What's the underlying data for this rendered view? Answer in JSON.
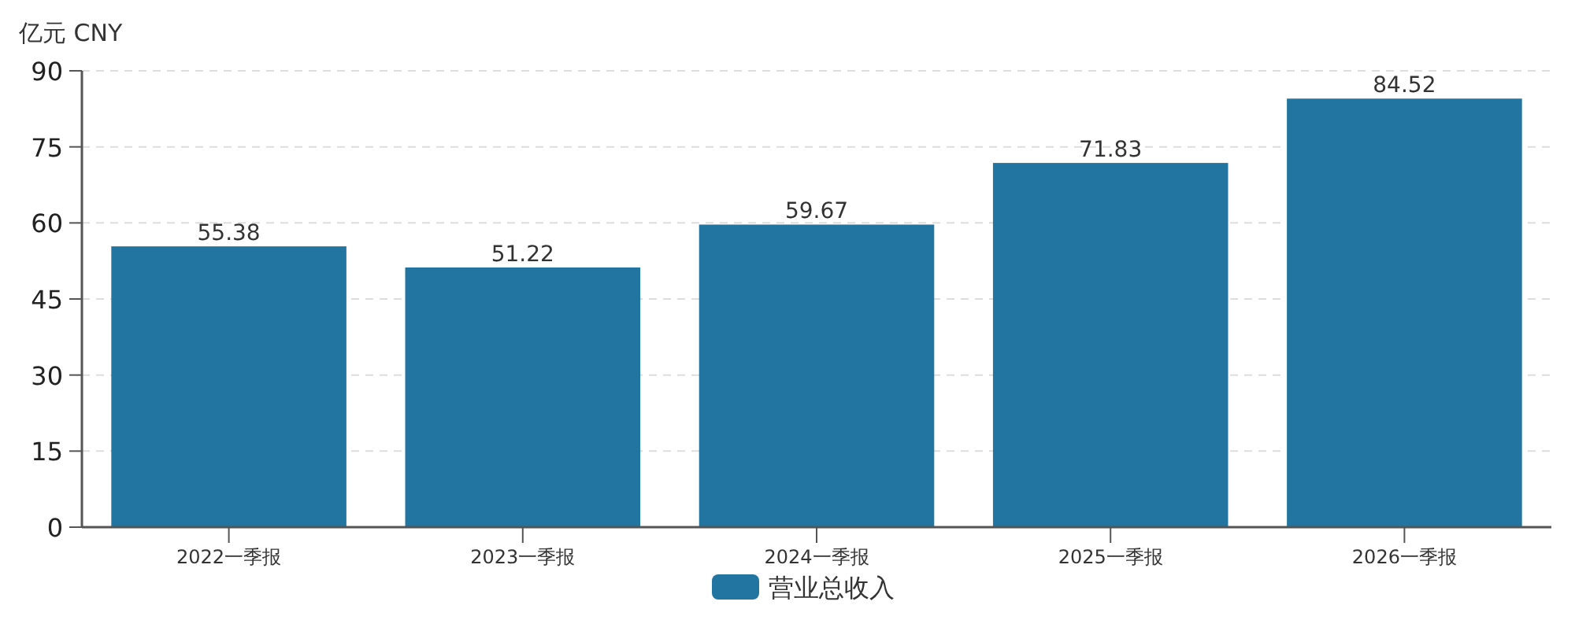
{
  "chart_data": {
    "type": "bar",
    "ylabel": "亿元  CNY",
    "categories": [
      "2022一季报",
      "2023一季报",
      "2024一季报",
      "2025一季报",
      "2026一季报"
    ],
    "series": [
      {
        "name": "营业总收入",
        "color": "#2275a0",
        "values": [
          55.38,
          51.22,
          59.67,
          71.83,
          84.52
        ]
      }
    ],
    "ylim": [
      0,
      90
    ],
    "yticks": [
      0,
      15,
      30,
      45,
      60,
      75,
      90
    ],
    "grid": "y",
    "data_labels": true,
    "legend": "bottom"
  }
}
